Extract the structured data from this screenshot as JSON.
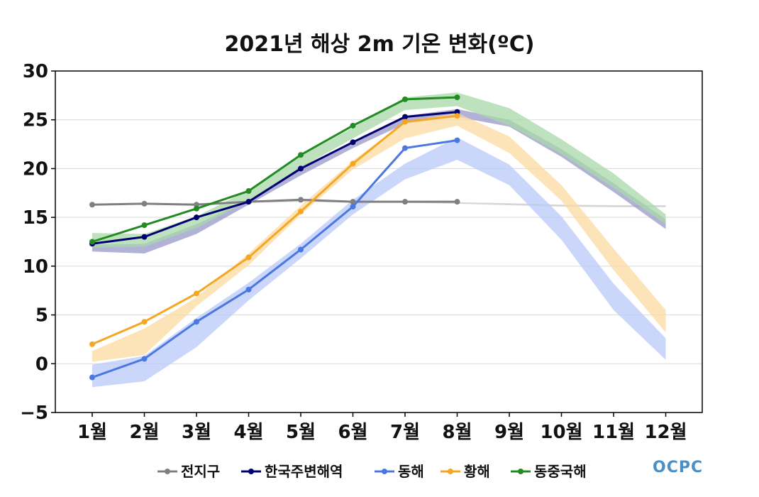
{
  "logo": "OCPC",
  "chart_data": {
    "type": "line",
    "title": "2021년 해상 2m 기온 변화(ºC)",
    "xlabel": "",
    "ylabel": "",
    "categories": [
      "1월",
      "2월",
      "3월",
      "4월",
      "5월",
      "6월",
      "7월",
      "8월",
      "9월",
      "10월",
      "11월",
      "12월"
    ],
    "ylim": [
      -5,
      30
    ],
    "yticks": [
      -5,
      0,
      5,
      10,
      15,
      20,
      25,
      30
    ],
    "ytick_labels": [
      "−5",
      "0",
      "5",
      "10",
      "15",
      "20",
      "25",
      "30"
    ],
    "grid": true,
    "legend_position": "bottom",
    "series": [
      {
        "name": "전지구",
        "color": "#808080",
        "band_color": "#c8c8c8",
        "values": [
          16.3,
          16.4,
          16.3,
          16.6,
          16.8,
          16.6,
          16.6,
          16.6,
          null,
          null,
          null,
          null
        ],
        "band_low": [
          16.25,
          16.3,
          16.3,
          16.5,
          16.6,
          16.5,
          16.5,
          16.4,
          16.25,
          16.1,
          16.05,
          16.05
        ],
        "band_high": [
          16.35,
          16.45,
          16.45,
          16.65,
          16.75,
          16.65,
          16.65,
          16.55,
          16.45,
          16.3,
          16.25,
          16.25
        ]
      },
      {
        "name": "한국주변해역",
        "color": "#000070",
        "band_color": "#9898c8",
        "values": [
          12.3,
          13.0,
          15.0,
          16.6,
          20.0,
          22.7,
          25.3,
          25.8,
          null,
          null,
          null,
          null
        ],
        "band_low": [
          11.5,
          11.3,
          13.3,
          16.3,
          19.3,
          22.1,
          24.6,
          25.3,
          24.3,
          21.2,
          17.6,
          13.8
        ],
        "band_high": [
          12.2,
          12.3,
          14.3,
          16.8,
          20.2,
          22.7,
          25.4,
          26.1,
          25.0,
          22.0,
          18.5,
          14.8
        ]
      },
      {
        "name": "동해",
        "color": "#4a78e0",
        "band_color": "#b8c8f8",
        "values": [
          -1.4,
          0.5,
          4.3,
          7.6,
          11.7,
          16.1,
          22.1,
          22.9,
          null,
          null,
          null,
          null
        ],
        "band_low": [
          -2.4,
          -1.8,
          1.7,
          6.5,
          10.8,
          15.3,
          18.9,
          20.9,
          18.3,
          12.7,
          5.5,
          0.4
        ],
        "band_high": [
          -0.1,
          0.8,
          4.7,
          8.3,
          12.3,
          16.8,
          20.5,
          23.2,
          20.4,
          15.1,
          8.2,
          2.6
        ]
      },
      {
        "name": "황해",
        "color": "#f5a623",
        "band_color": "#fcd9a0",
        "values": [
          2.0,
          4.3,
          7.2,
          10.9,
          15.6,
          20.5,
          24.8,
          25.4,
          null,
          null,
          null,
          null
        ],
        "band_low": [
          0.2,
          0.9,
          5.9,
          10.1,
          15.3,
          19.9,
          23.1,
          24.4,
          21.6,
          16.7,
          9.6,
          3.2
        ],
        "band_high": [
          1.3,
          3.6,
          6.8,
          11.3,
          16.2,
          20.8,
          24.8,
          25.7,
          23.3,
          18.3,
          11.8,
          5.5
        ]
      },
      {
        "name": "동중국해",
        "color": "#228b22",
        "band_color": "#a8d8a8",
        "values": [
          12.5,
          14.2,
          15.9,
          17.7,
          21.4,
          24.4,
          27.1,
          27.3,
          null,
          null,
          null,
          null
        ],
        "band_low": [
          11.9,
          12.0,
          13.9,
          16.7,
          20.1,
          23.1,
          26.0,
          26.4,
          24.4,
          21.5,
          18.0,
          14.3
        ],
        "band_high": [
          13.4,
          13.3,
          15.1,
          17.8,
          21.3,
          24.2,
          27.3,
          27.8,
          26.2,
          23.0,
          19.5,
          15.3
        ]
      }
    ]
  }
}
